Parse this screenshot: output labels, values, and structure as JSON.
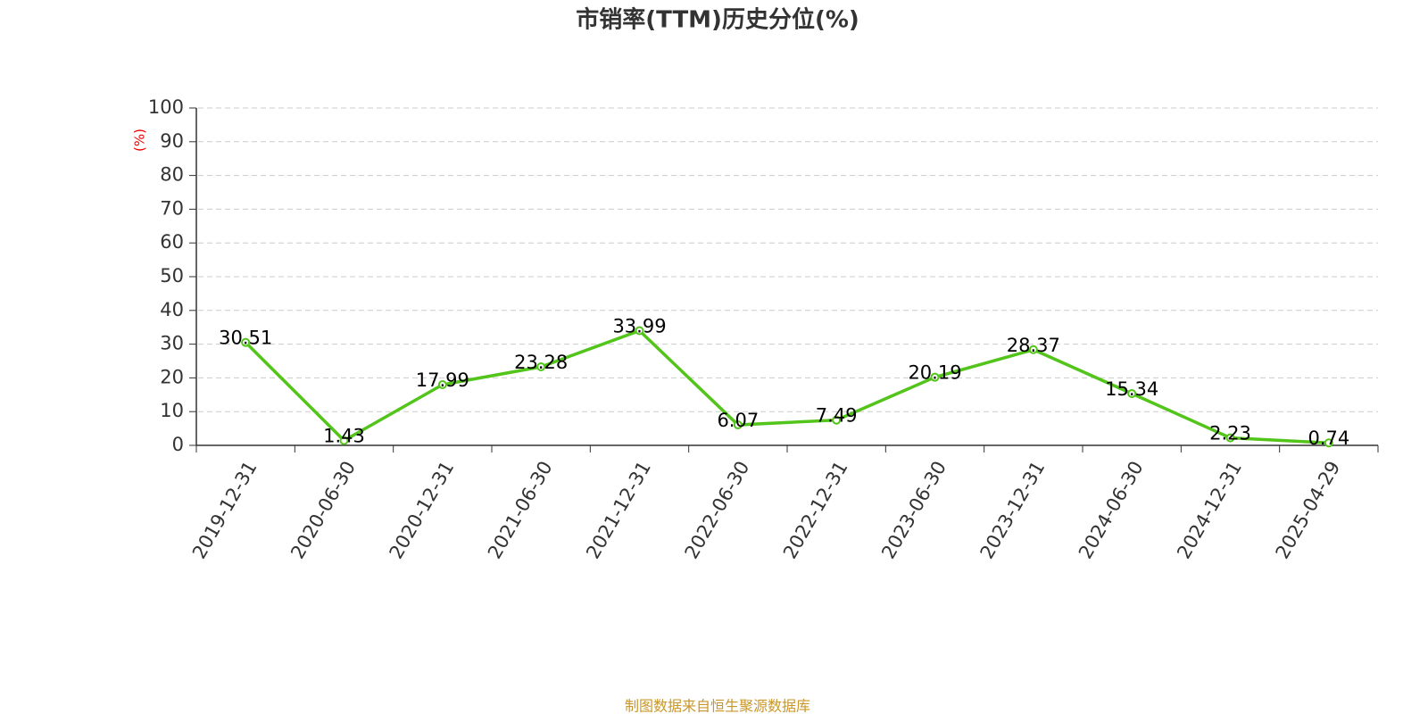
{
  "chart_data": {
    "type": "line",
    "title": "市销率(TTM)历史分位(%)",
    "y_label": "(%)",
    "categories": [
      "2019-12-31",
      "2020-06-30",
      "2020-12-31",
      "2021-06-30",
      "2021-12-31",
      "2022-06-30",
      "2022-12-31",
      "2023-06-30",
      "2023-12-31",
      "2024-06-30",
      "2024-12-31",
      "2025-04-29"
    ],
    "values": [
      30.51,
      1.43,
      17.99,
      23.28,
      33.99,
      6.07,
      7.49,
      20.19,
      28.37,
      15.34,
      2.23,
      0.74
    ],
    "color": "#52c41a",
    "ylim": [
      0,
      100
    ],
    "yticks": [
      0,
      10,
      20,
      30,
      40,
      50,
      60,
      70,
      80,
      90,
      100
    ],
    "grid": true,
    "source": "制图数据来自恒生聚源数据库"
  }
}
